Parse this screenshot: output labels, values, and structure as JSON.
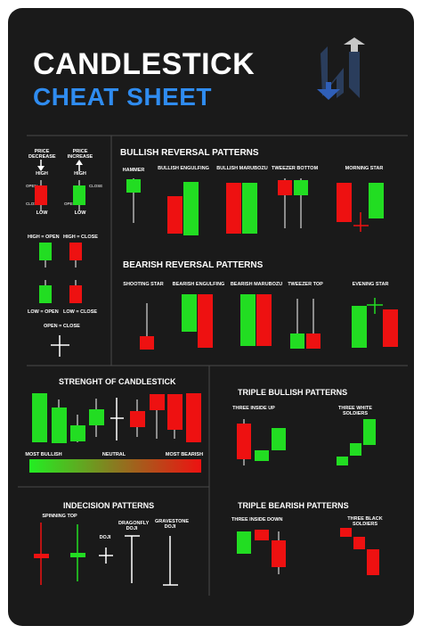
{
  "title_line1": "CANDLESTICK",
  "title_line2": "CHEAT SHEET",
  "colors": {
    "bullish": "#22dd22",
    "bearish": "#ee1111",
    "accent": "#2f8cf0",
    "background": "#1a1a1a"
  },
  "anatomy": {
    "price_decrease": "PRICE\nDECREASE",
    "price_increase": "PRICE\nINCREASE",
    "high": "HIGH",
    "low": "LOW",
    "open": "OPEN",
    "close": "CLOSE",
    "high_open_close": "HIGH = OPEN",
    "high_close": "HIGH = CLOSE",
    "low_open": "LOW = OPEN",
    "low_close": "LOW = CLOSE",
    "open_close": "OPEN = CLOSE"
  },
  "bullish_reversal": {
    "title": "BULLISH REVERSAL PATTERNS",
    "items": [
      "HAMMER",
      "BULLISH ENGULFING",
      "BULLISH MARUBOZU",
      "TWEEZER BOTTOM",
      "MORNING STAR"
    ]
  },
  "bearish_reversal": {
    "title": "BEARISH REVERSAL PATTERNS",
    "items": [
      "SHOOTING STAR",
      "BEARISH ENGULFING",
      "BEARISH MARUBOZU",
      "TWEEZER TOP",
      "EVENING STAR"
    ]
  },
  "strength": {
    "title": "STRENGHT OF CANDLESTICK",
    "most_bullish": "MOST BULLISH",
    "neutral": "NEUTRAL",
    "most_bearish": "MOST BEARISH"
  },
  "triple_bullish": {
    "title": "TRIPLE BULLISH PATTERNS",
    "items": [
      "THREE INSIDE UP",
      "THREE WHITE\nSOLDIERS"
    ]
  },
  "indecision": {
    "title": "INDECISION PATTERNS",
    "items": [
      "SPINNING TOP",
      "DOJI",
      "DRAGONFLY\nDOJI",
      "GRAVESTONE\nDOJI"
    ]
  },
  "triple_bearish": {
    "title": "TRIPLE BEARISH PATTERNS",
    "items": [
      "THREE INSIDE DOWN",
      "THREE BLACK\nSOLDIERS"
    ]
  }
}
